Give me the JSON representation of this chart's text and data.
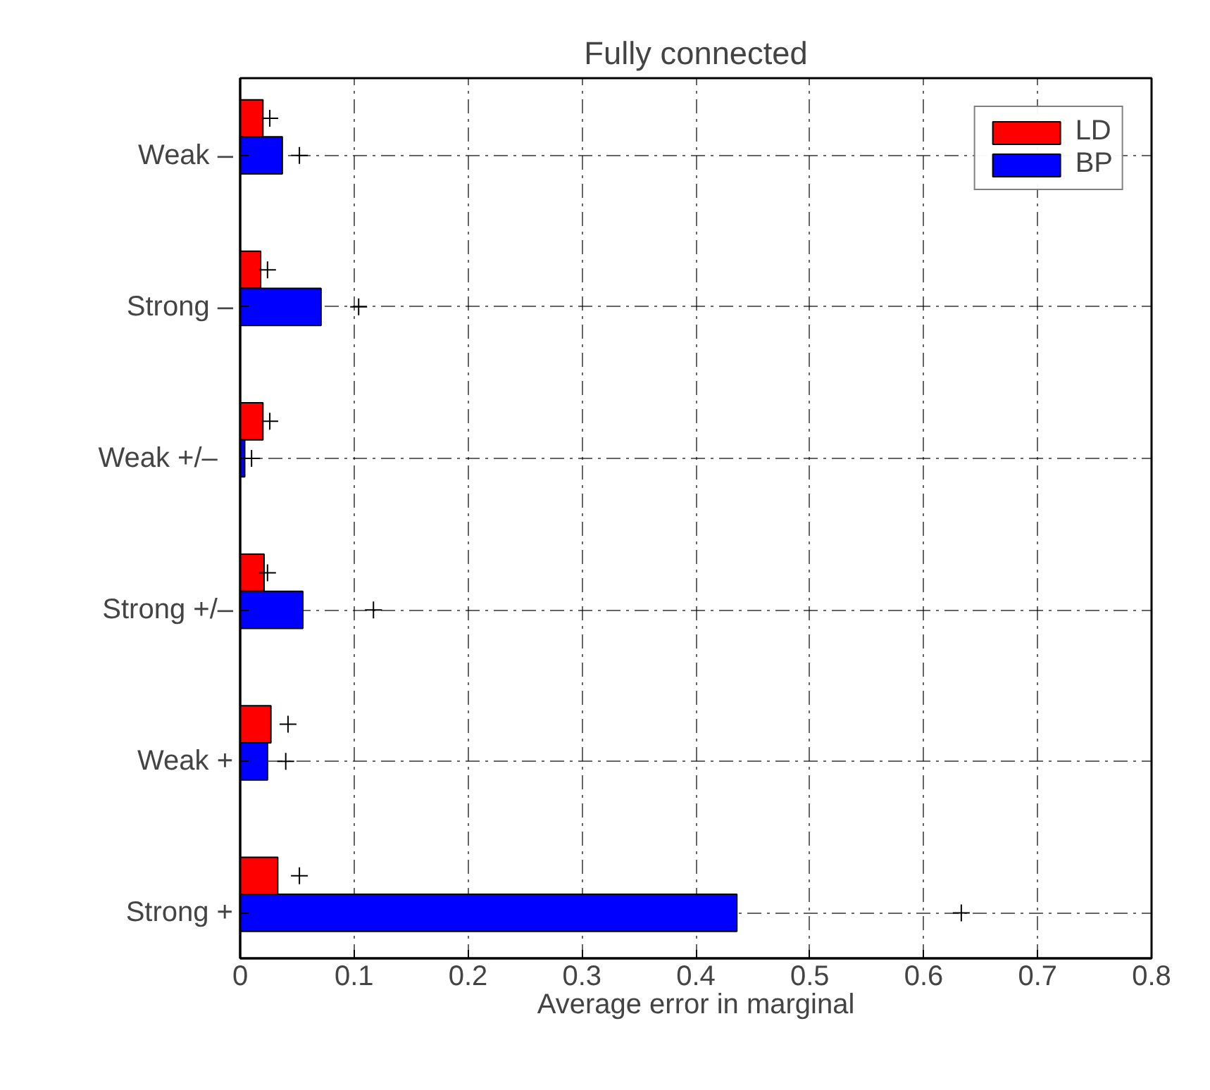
{
  "chart_data": {
    "type": "bar",
    "orientation": "horizontal",
    "title": "Fully connected",
    "xlabel": "Average error in marginal",
    "categories": [
      "Weak –",
      "Strong –",
      "Weak   +/–",
      "Strong +/–",
      "Weak +",
      "Strong +"
    ],
    "series": [
      {
        "name": "LD",
        "color": "#ff0000",
        "values": [
          0.02,
          0.018,
          0.02,
          0.021,
          0.027,
          0.033
        ]
      },
      {
        "name": "BP",
        "color": "#0000ff",
        "values": [
          0.037,
          0.071,
          0.004,
          0.055,
          0.024,
          0.436
        ]
      },
      {
        "type": "scatter",
        "color": "#000000",
        "marker": "cross",
        "values": [
          0.026,
          0.024,
          0.026,
          0.024,
          0.042,
          0.052
        ]
      },
      {
        "type": "scatter",
        "color": "#000000",
        "marker": "cross",
        "values": [
          0.052,
          0.104,
          0.01,
          0.117,
          0.04,
          0.633
        ]
      }
    ],
    "xlim": [
      0,
      0.8
    ],
    "xticks": [
      0,
      0.1,
      0.2,
      0.3,
      0.4,
      0.5,
      0.6,
      0.7,
      0.8
    ],
    "grid": true,
    "legend": "top right"
  }
}
